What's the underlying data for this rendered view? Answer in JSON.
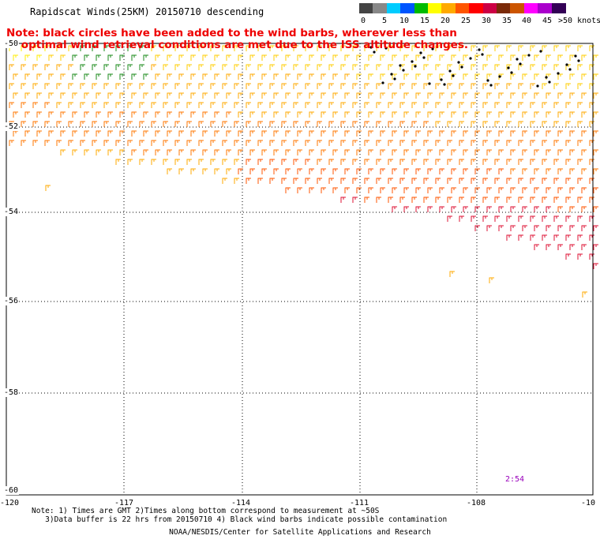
{
  "title": "Rapidscat Winds(25KM) 20150710 descending",
  "note_line1": "Note: black circles have been added to the wind barbs, wherever less than",
  "note_line2": "    optimal wind retrieval conditions are met due to the ISS altitude changes.",
  "legend": {
    "colors": [
      "#444444",
      "#888888",
      "#00ccff",
      "#0055ff",
      "#00bb00",
      "#ffff00",
      "#ffaa00",
      "#ff5500",
      "#ff0000",
      "#cc0044",
      "#7a2a08",
      "#cc5500",
      "#ff00ff",
      "#aa00cc",
      "#330055"
    ],
    "labels": [
      "0",
      "5",
      "10",
      "15",
      "20",
      "25",
      "30",
      "35",
      "40",
      "45",
      ">50 knots"
    ]
  },
  "lat_labels": [
    "-50",
    "-52",
    "-54",
    "-56",
    "-58",
    "-60"
  ],
  "lon_labels": [
    "-120",
    "-117",
    "-114",
    "-111",
    "-108",
    "-10"
  ],
  "time_label": "2:54",
  "footnote_line1": "Note: 1) Times are GMT 2)Times along bottom correspond to measurement at ~50S",
  "footnote_line2": "   3)Data buffer is 22 hrs from 20150710 4) Black wind barbs indicate possible contamination",
  "credit": "NOAA/NESDIS/Center for Satellite Applications and Research"
}
